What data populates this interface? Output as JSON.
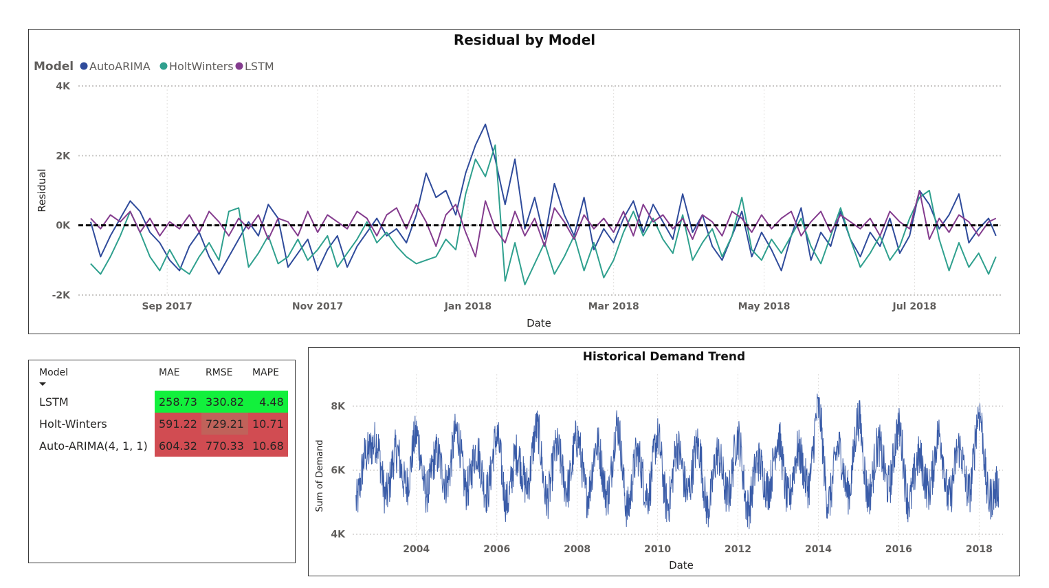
{
  "colors": {
    "AutoARIMA": "#2f4b9b",
    "HoltWinters": "#2fa08e",
    "LSTM": "#843c8e",
    "demand": "#3a5ca8",
    "gridline": "#c8c6c4",
    "zero_line": "#000000",
    "good_cell": "#12f03c",
    "bad_cell": "#d14c52",
    "mid_cell": "#c0625a"
  },
  "chart_data": [
    {
      "type": "line",
      "title": "Residual by Model",
      "xlabel": "Date",
      "ylabel": "Residual",
      "legend": {
        "title": "Model",
        "placement": "top-left",
        "entries": [
          "AutoARIMA",
          "HoltWinters",
          "LSTM"
        ]
      },
      "x_range": [
        "2017-07-27",
        "2018-08-05"
      ],
      "ylim": [
        -2000,
        4000
      ],
      "y_ticks": [
        -2000,
        0,
        2000,
        4000
      ],
      "y_tick_labels": [
        "-2K",
        "0K",
        "2K",
        "4K"
      ],
      "x_ticks": [
        "2017-09-01",
        "2017-11-01",
        "2018-01-01",
        "2018-03-01",
        "2018-05-01",
        "2018-07-01"
      ],
      "x_tick_labels": [
        "Sep 2017",
        "Nov 2017",
        "Jan 2018",
        "Mar 2018",
        "May 2018",
        "Jul 2018"
      ],
      "grid": true,
      "zero_line": {
        "value": 0,
        "style": "dashed"
      },
      "series": [
        {
          "name": "AutoARIMA",
          "x": [
            "2017-08-01",
            "2017-08-05",
            "2017-08-09",
            "2017-08-13",
            "2017-08-17",
            "2017-08-21",
            "2017-08-25",
            "2017-08-29",
            "2017-09-02",
            "2017-09-06",
            "2017-09-10",
            "2017-09-14",
            "2017-09-18",
            "2017-09-22",
            "2017-09-26",
            "2017-09-30",
            "2017-10-04",
            "2017-10-08",
            "2017-10-12",
            "2017-10-16",
            "2017-10-20",
            "2017-10-24",
            "2017-10-28",
            "2017-11-01",
            "2017-11-05",
            "2017-11-09",
            "2017-11-13",
            "2017-11-17",
            "2017-11-21",
            "2017-11-25",
            "2017-11-29",
            "2017-12-03",
            "2017-12-07",
            "2017-12-11",
            "2017-12-15",
            "2017-12-19",
            "2017-12-23",
            "2017-12-27",
            "2017-12-31",
            "2018-01-04",
            "2018-01-08",
            "2018-01-12",
            "2018-01-16",
            "2018-01-20",
            "2018-01-24",
            "2018-01-28",
            "2018-02-01",
            "2018-02-05",
            "2018-02-09",
            "2018-02-13",
            "2018-02-17",
            "2018-02-21",
            "2018-02-25",
            "2018-03-01",
            "2018-03-05",
            "2018-03-09",
            "2018-03-13",
            "2018-03-17",
            "2018-03-21",
            "2018-03-25",
            "2018-03-29",
            "2018-04-02",
            "2018-04-06",
            "2018-04-10",
            "2018-04-14",
            "2018-04-18",
            "2018-04-22",
            "2018-04-26",
            "2018-04-30",
            "2018-05-04",
            "2018-05-08",
            "2018-05-12",
            "2018-05-16",
            "2018-05-20",
            "2018-05-24",
            "2018-05-28",
            "2018-06-01",
            "2018-06-05",
            "2018-06-09",
            "2018-06-13",
            "2018-06-17",
            "2018-06-21",
            "2018-06-25",
            "2018-06-29",
            "2018-07-03",
            "2018-07-07",
            "2018-07-11",
            "2018-07-15",
            "2018-07-19",
            "2018-07-23",
            "2018-07-27",
            "2018-07-31",
            "2018-08-03"
          ],
          "values": [
            100,
            -900,
            -300,
            200,
            700,
            400,
            -200,
            -500,
            -1000,
            -1300,
            -600,
            -200,
            -900,
            -1400,
            -900,
            -400,
            100,
            -300,
            600,
            200,
            -1200,
            -800,
            -400,
            -1300,
            -700,
            -300,
            -1200,
            -600,
            -200,
            200,
            -300,
            -100,
            -500,
            300,
            1500,
            800,
            1000,
            300,
            1500,
            2300,
            2900,
            1900,
            600,
            1900,
            -100,
            800,
            -400,
            1200,
            300,
            -300,
            800,
            -700,
            -100,
            -500,
            200,
            700,
            -200,
            600,
            100,
            -400,
            900,
            -200,
            300,
            -600,
            -1000,
            -300,
            400,
            -900,
            -200,
            -700,
            -1300,
            -300,
            500,
            -1000,
            -200,
            -600,
            400,
            -400,
            -900,
            -200,
            -600,
            200,
            -800,
            -300,
            1000,
            600,
            -100,
            300,
            900,
            -500,
            -100,
            200,
            -300
          ]
        },
        {
          "name": "HoltWinters",
          "x": [
            "2017-08-01",
            "2017-08-05",
            "2017-08-09",
            "2017-08-13",
            "2017-08-17",
            "2017-08-21",
            "2017-08-25",
            "2017-08-29",
            "2017-09-02",
            "2017-09-06",
            "2017-09-10",
            "2017-09-14",
            "2017-09-18",
            "2017-09-22",
            "2017-09-26",
            "2017-09-30",
            "2017-10-04",
            "2017-10-08",
            "2017-10-12",
            "2017-10-16",
            "2017-10-20",
            "2017-10-24",
            "2017-10-28",
            "2017-11-01",
            "2017-11-05",
            "2017-11-09",
            "2017-11-13",
            "2017-11-17",
            "2017-11-21",
            "2017-11-25",
            "2017-11-29",
            "2017-12-03",
            "2017-12-07",
            "2017-12-11",
            "2017-12-15",
            "2017-12-19",
            "2017-12-23",
            "2017-12-27",
            "2017-12-31",
            "2018-01-04",
            "2018-01-08",
            "2018-01-12",
            "2018-01-16",
            "2018-01-20",
            "2018-01-24",
            "2018-01-28",
            "2018-02-01",
            "2018-02-05",
            "2018-02-09",
            "2018-02-13",
            "2018-02-17",
            "2018-02-21",
            "2018-02-25",
            "2018-03-01",
            "2018-03-05",
            "2018-03-09",
            "2018-03-13",
            "2018-03-17",
            "2018-03-21",
            "2018-03-25",
            "2018-03-29",
            "2018-04-02",
            "2018-04-06",
            "2018-04-10",
            "2018-04-14",
            "2018-04-18",
            "2018-04-22",
            "2018-04-26",
            "2018-04-30",
            "2018-05-04",
            "2018-05-08",
            "2018-05-12",
            "2018-05-16",
            "2018-05-20",
            "2018-05-24",
            "2018-05-28",
            "2018-06-01",
            "2018-06-05",
            "2018-06-09",
            "2018-06-13",
            "2018-06-17",
            "2018-06-21",
            "2018-06-25",
            "2018-06-29",
            "2018-07-03",
            "2018-07-07",
            "2018-07-11",
            "2018-07-15",
            "2018-07-19",
            "2018-07-23",
            "2018-07-27",
            "2018-07-31",
            "2018-08-03"
          ],
          "values": [
            -1100,
            -1400,
            -900,
            -300,
            400,
            -200,
            -900,
            -1300,
            -700,
            -1200,
            -1400,
            -900,
            -500,
            -1000,
            400,
            500,
            -1200,
            -800,
            -300,
            -1100,
            -900,
            -400,
            -1000,
            -700,
            -300,
            -1200,
            -800,
            -400,
            100,
            -500,
            -200,
            -600,
            -900,
            -1100,
            -1000,
            -900,
            -400,
            -700,
            900,
            1900,
            1400,
            2300,
            -1600,
            -500,
            -1700,
            -1100,
            -500,
            -1400,
            -900,
            -300,
            -1300,
            -500,
            -1500,
            -1000,
            -200,
            400,
            -300,
            200,
            -400,
            -800,
            300,
            -1000,
            -500,
            -100,
            -900,
            -300,
            800,
            -700,
            -1000,
            -400,
            -800,
            -300,
            200,
            -600,
            -1100,
            -300,
            500,
            -400,
            -1200,
            -800,
            -300,
            -1000,
            -600,
            200,
            800,
            1000,
            -400,
            -1300,
            -500,
            -1200,
            -800,
            -1400,
            -900
          ]
        },
        {
          "name": "LSTM",
          "x": [
            "2017-08-01",
            "2017-08-05",
            "2017-08-09",
            "2017-08-13",
            "2017-08-17",
            "2017-08-21",
            "2017-08-25",
            "2017-08-29",
            "2017-09-02",
            "2017-09-06",
            "2017-09-10",
            "2017-09-14",
            "2017-09-18",
            "2017-09-22",
            "2017-09-26",
            "2017-09-30",
            "2017-10-04",
            "2017-10-08",
            "2017-10-12",
            "2017-10-16",
            "2017-10-20",
            "2017-10-24",
            "2017-10-28",
            "2017-11-01",
            "2017-11-05",
            "2017-11-09",
            "2017-11-13",
            "2017-11-17",
            "2017-11-21",
            "2017-11-25",
            "2017-11-29",
            "2017-12-03",
            "2017-12-07",
            "2017-12-11",
            "2017-12-15",
            "2017-12-19",
            "2017-12-23",
            "2017-12-27",
            "2017-12-31",
            "2018-01-04",
            "2018-01-08",
            "2018-01-12",
            "2018-01-16",
            "2018-01-20",
            "2018-01-24",
            "2018-01-28",
            "2018-02-01",
            "2018-02-05",
            "2018-02-09",
            "2018-02-13",
            "2018-02-17",
            "2018-02-21",
            "2018-02-25",
            "2018-03-01",
            "2018-03-05",
            "2018-03-09",
            "2018-03-13",
            "2018-03-17",
            "2018-03-21",
            "2018-03-25",
            "2018-03-29",
            "2018-04-02",
            "2018-04-06",
            "2018-04-10",
            "2018-04-14",
            "2018-04-18",
            "2018-04-22",
            "2018-04-26",
            "2018-04-30",
            "2018-05-04",
            "2018-05-08",
            "2018-05-12",
            "2018-05-16",
            "2018-05-20",
            "2018-05-24",
            "2018-05-28",
            "2018-06-01",
            "2018-06-05",
            "2018-06-09",
            "2018-06-13",
            "2018-06-17",
            "2018-06-21",
            "2018-06-25",
            "2018-06-29",
            "2018-07-03",
            "2018-07-07",
            "2018-07-11",
            "2018-07-15",
            "2018-07-19",
            "2018-07-23",
            "2018-07-27",
            "2018-07-31",
            "2018-08-03"
          ],
          "values": [
            200,
            -100,
            300,
            100,
            400,
            -200,
            200,
            -300,
            100,
            -100,
            300,
            -200,
            400,
            100,
            -300,
            200,
            -100,
            300,
            -400,
            200,
            100,
            -300,
            400,
            -200,
            300,
            100,
            -100,
            400,
            200,
            -300,
            300,
            500,
            -100,
            600,
            100,
            -600,
            300,
            600,
            -200,
            -900,
            700,
            -100,
            -500,
            400,
            -300,
            200,
            -600,
            500,
            100,
            -400,
            300,
            -100,
            200,
            -200,
            400,
            -300,
            600,
            100,
            300,
            -100,
            200,
            -400,
            300,
            100,
            -300,
            400,
            200,
            -200,
            300,
            -100,
            200,
            400,
            -300,
            100,
            400,
            -200,
            300,
            100,
            -100,
            200,
            -300,
            400,
            100,
            -100,
            1000,
            -400,
            200,
            -200,
            300,
            100,
            -300,
            100,
            200
          ]
        }
      ]
    },
    {
      "type": "line",
      "title": "Historical Demand Trend",
      "xlabel": "Date",
      "ylabel": "Sum of Demand",
      "x_range": [
        "2002-06-01",
        "2018-08-05"
      ],
      "ylim": [
        3800,
        9000
      ],
      "y_ticks": [
        4000,
        6000,
        8000
      ],
      "y_tick_labels": [
        "4K",
        "6K",
        "8K"
      ],
      "x_ticks": [
        2004,
        2006,
        2008,
        2010,
        2012,
        2014,
        2016,
        2018
      ],
      "x_tick_labels": [
        "2004",
        "2006",
        "2008",
        "2010",
        "2012",
        "2014",
        "2016",
        "2018"
      ],
      "grid": true,
      "series": [
        {
          "name": "Sum of Demand",
          "x": [
            "2002-07-01",
            "2002-10-01",
            "2003-01-01",
            "2003-04-01",
            "2003-07-01",
            "2003-10-01",
            "2004-01-01",
            "2004-04-01",
            "2004-07-01",
            "2004-10-01",
            "2005-01-01",
            "2005-04-01",
            "2005-07-01",
            "2005-10-01",
            "2006-01-01",
            "2006-04-01",
            "2006-07-01",
            "2006-10-01",
            "2007-01-01",
            "2007-04-01",
            "2007-07-01",
            "2007-10-01",
            "2008-01-01",
            "2008-04-01",
            "2008-07-01",
            "2008-10-01",
            "2009-01-01",
            "2009-04-01",
            "2009-07-01",
            "2009-10-01",
            "2010-01-01",
            "2010-04-01",
            "2010-07-01",
            "2010-10-01",
            "2011-01-01",
            "2011-04-01",
            "2011-07-01",
            "2011-10-01",
            "2012-01-01",
            "2012-04-01",
            "2012-07-01",
            "2012-10-01",
            "2013-01-01",
            "2013-04-01",
            "2013-07-01",
            "2013-10-01",
            "2014-01-01",
            "2014-04-01",
            "2014-07-01",
            "2014-10-01",
            "2015-01-01",
            "2015-04-01",
            "2015-07-01",
            "2015-10-01",
            "2016-01-01",
            "2016-04-01",
            "2016-07-01",
            "2016-10-01",
            "2017-01-01",
            "2017-04-01",
            "2017-07-01",
            "2017-10-01",
            "2018-01-01",
            "2018-04-01",
            "2018-07-01"
          ],
          "values": [
            5000,
            6500,
            6900,
            5200,
            6600,
            5500,
            7100,
            5300,
            6500,
            5600,
            7200,
            5400,
            6600,
            5300,
            7000,
            5000,
            6500,
            5500,
            7300,
            5100,
            6700,
            5400,
            7000,
            5200,
            6800,
            5200,
            7400,
            4800,
            6500,
            5200,
            7000,
            4900,
            6700,
            5300,
            6800,
            4800,
            6500,
            5200,
            7000,
            4800,
            6300,
            5400,
            7000,
            5100,
            6600,
            5500,
            7900,
            5000,
            6700,
            5300,
            7600,
            5200,
            6800,
            5500,
            7300,
            5000,
            6400,
            5400,
            7100,
            5100,
            6700,
            5300,
            7800,
            5100,
            5500
          ]
        }
      ]
    }
  ],
  "metrics_table": {
    "headers": [
      "Model",
      "MAE",
      "RMSE",
      "MAPE"
    ],
    "rows": [
      {
        "model": "LSTM",
        "mae": "258.73",
        "rmse": "330.82",
        "mape": "4.48",
        "mae_color": "#12f03c",
        "rmse_color": "#12f03c",
        "mape_color": "#12f03c"
      },
      {
        "model": "Holt-Winters",
        "mae": "591.22",
        "rmse": "729.21",
        "mape": "10.71",
        "mae_color": "#d14c52",
        "rmse_color": "#c0625a",
        "mape_color": "#d14c52"
      },
      {
        "model": "Auto-ARIMA(4, 1, 1)",
        "mae": "604.32",
        "rmse": "770.33",
        "mape": "10.68",
        "mae_color": "#d14c52",
        "rmse_color": "#d14c52",
        "mape_color": "#d14c52"
      }
    ]
  }
}
